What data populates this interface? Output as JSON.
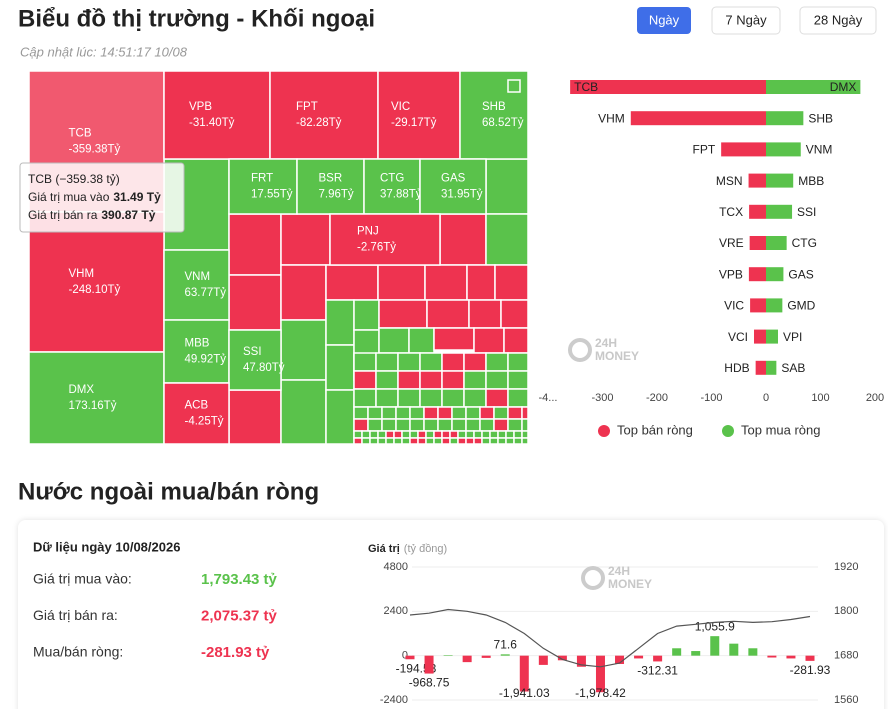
{
  "header": {
    "title": "Biểu đồ thị trường - Khối ngoại",
    "updated": "Cập nhật lúc: 14:51:17 10/08",
    "buttons": [
      "Ngày",
      "7 Ngày",
      "28 Ngày"
    ]
  },
  "treemap": {
    "tiles": [
      {
        "code": "TCB",
        "value": "-359.38Tỷ"
      },
      {
        "code": "VHM",
        "value": "-248.10Tỷ"
      },
      {
        "code": "DMX",
        "value": "173.16Tỷ"
      },
      {
        "code": "VPB",
        "value": "-31.40Tỷ"
      },
      {
        "code": "FPT",
        "value": "-82.28Tỷ"
      },
      {
        "code": "VIC",
        "value": "-29.17Tỷ"
      },
      {
        "code": "SHB",
        "value": "68.52Tỷ"
      },
      {
        "code": "FRT",
        "value": "17.55Tỷ"
      },
      {
        "code": "BSR",
        "value": "7.96Tỷ"
      },
      {
        "code": "CTG",
        "value": "37.88Tỷ"
      },
      {
        "code": "GAS",
        "value": "31.95Tỷ"
      },
      {
        "code": "VNM",
        "value": "63.77Tỷ"
      },
      {
        "code": "MBB",
        "value": "49.92Tỷ"
      },
      {
        "code": "SSI",
        "value": "47.80Tỷ"
      },
      {
        "code": "ACB",
        "value": "-4.25Tỷ"
      },
      {
        "code": "PNJ",
        "value": "-2.76Tỷ"
      }
    ],
    "tooltip": {
      "title": "TCB (−359.38 tỷ)",
      "buy_label": "Giá trị mua vào",
      "buy_value": "31.49 Tỷ",
      "sell_label": "Giá trị bán ra",
      "sell_value": "390.87 Tỷ"
    }
  },
  "watermark": [
    "24H",
    "MONEY"
  ],
  "chart_data": [
    {
      "type": "hbar",
      "series": [
        {
          "name": "Top bán ròng",
          "color": "#ee3350",
          "categories": [
            "TCB",
            "VHM",
            "FPT",
            "MSN",
            "TCX",
            "VRE",
            "VPB",
            "VIC",
            "VCI",
            "HDB"
          ],
          "values": [
            -359.38,
            -248.1,
            -82.28,
            -32,
            -31,
            -30,
            -31.4,
            -29.17,
            -22,
            -19
          ]
        },
        {
          "name": "Top mua ròng",
          "color": "#5ac24b",
          "categories": [
            "DMX",
            "SHB",
            "VNM",
            "MBB",
            "SSI",
            "CTG",
            "GAS",
            "GMD",
            "VPI",
            "SAB"
          ],
          "values": [
            173.16,
            68.52,
            63.77,
            49.92,
            47.8,
            37.88,
            31.95,
            30,
            22,
            19
          ]
        }
      ],
      "xlim": [
        -400,
        200
      ],
      "xticks": [
        {
          "value": -400,
          "label": "-4..."
        },
        -300,
        -200,
        -100,
        0,
        100,
        200
      ]
    },
    {
      "type": "combo",
      "title": "Nước ngoài mua/bán ròng",
      "summary": {
        "date": "Dữ liệu ngày 10/08/2026",
        "rows": [
          {
            "label": "Giá trị mua vào:",
            "value": "1,793.43 tỷ"
          },
          {
            "label": "Giá trị bán ra:",
            "value": "2,075.37 tỷ"
          },
          {
            "label": "Mua/bán ròng:",
            "value": "-281.93 tỷ"
          }
        ]
      },
      "ylabel": "Giá trị",
      "yunit": "(tỷ đồng)",
      "ylim": [
        -2400,
        4800
      ],
      "yticks": [
        4800,
        2400,
        0,
        -2400
      ],
      "y2lim": [
        1560,
        1920
      ],
      "y2ticks": [
        1920,
        1800,
        1680,
        1560
      ],
      "series": [
        {
          "kind": "bar",
          "color_positive": "#5ac24b",
          "color_negative": "#ee3350",
          "values": [
            -194.53,
            -968.75,
            30,
            -350,
            -120,
            71.6,
            -1941.03,
            -500,
            -250,
            -600,
            -1978.42,
            -450,
            -150,
            -312.31,
            400,
            250,
            1055.9,
            650,
            400,
            -100,
            -150,
            -281.93
          ],
          "value_labels": [
            "-194.53",
            "-968.75",
            null,
            null,
            null,
            "71.6",
            "-1,941.03",
            null,
            null,
            null,
            "-1,978.42",
            null,
            null,
            "-312.31",
            null,
            null,
            "1,055.9",
            null,
            null,
            null,
            null,
            "-281.93"
          ]
        },
        {
          "kind": "line",
          "axis": "y2",
          "color": "#555555",
          "values": [
            1790,
            1795,
            1805,
            1800,
            1790,
            1770,
            1740,
            1700,
            1670,
            1655,
            1650,
            1660,
            1700,
            1740,
            1760,
            1765,
            1770,
            1773,
            1770,
            1772,
            1778,
            1786
          ]
        }
      ]
    }
  ]
}
